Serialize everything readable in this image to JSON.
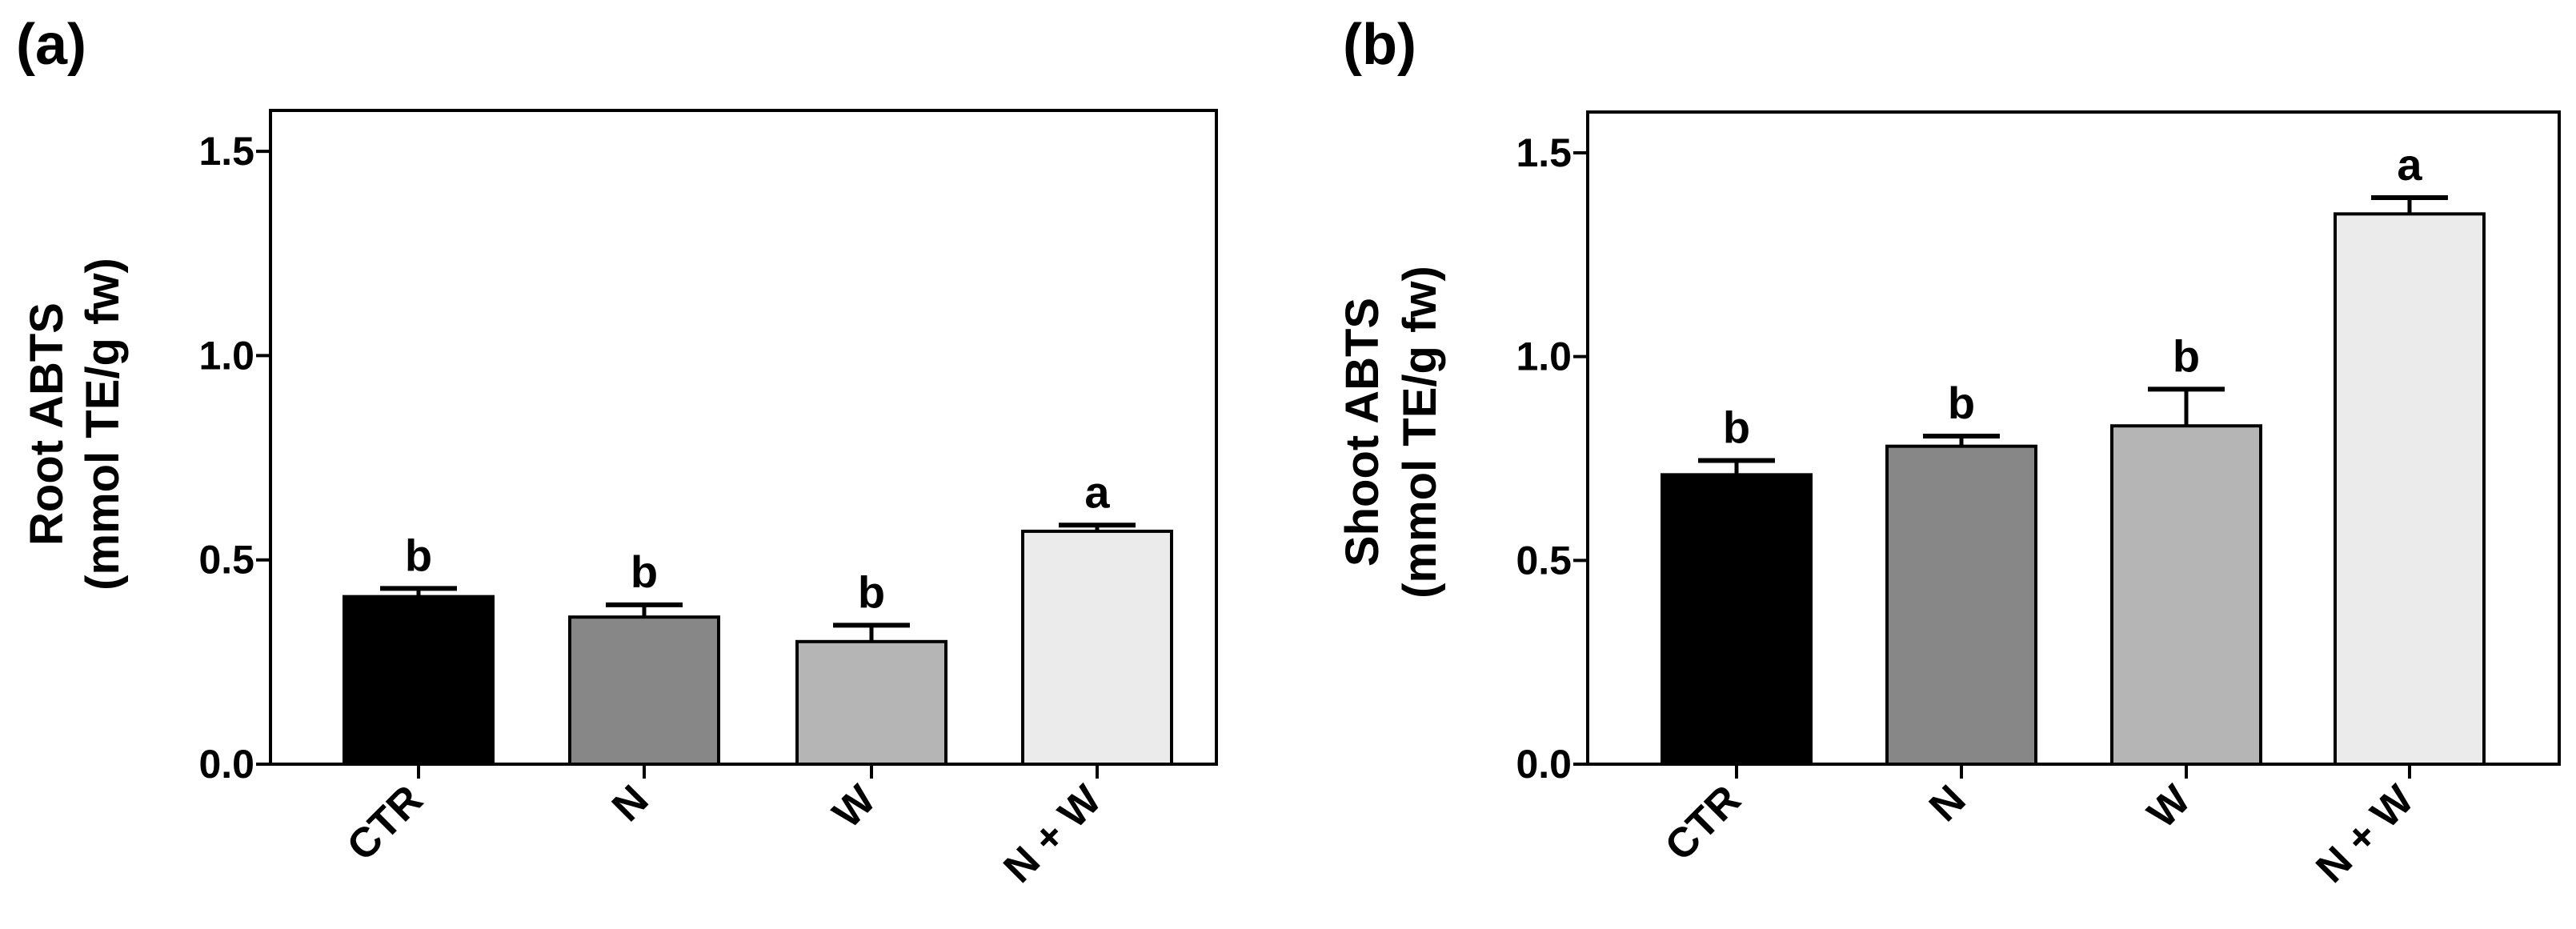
{
  "chart_data": [
    {
      "type": "bar",
      "panel_label": "(a)",
      "ylabel_line1": "Root ABTS",
      "ylabel_line2": "(mmol TE/g fw)",
      "ylim": [
        0,
        1.6
      ],
      "yticks": [
        "0.0",
        "0.5",
        "1.0",
        "1.5"
      ],
      "ytick_values": [
        0,
        0.5,
        1.0,
        1.5
      ],
      "categories": [
        "CTR",
        "N",
        "W",
        "N + W"
      ],
      "values": [
        0.41,
        0.36,
        0.3,
        0.57
      ],
      "errors": [
        0.02,
        0.03,
        0.04,
        0.015
      ],
      "significance": [
        "b",
        "b",
        "b",
        "a"
      ],
      "colors": [
        "#000000",
        "#878787",
        "#b5b5b5",
        "#ebebeb"
      ]
    },
    {
      "type": "bar",
      "panel_label": "(b)",
      "ylabel_line1": "Shoot ABTS",
      "ylabel_line2": "(mmol TE/g fw)",
      "ylim": [
        0,
        1.6
      ],
      "yticks": [
        "0.0",
        "0.5",
        "1.0",
        "1.5"
      ],
      "ytick_values": [
        0,
        0.5,
        1.0,
        1.5
      ],
      "categories": [
        "CTR",
        "N",
        "W",
        "N + W"
      ],
      "values": [
        0.71,
        0.78,
        0.83,
        1.35
      ],
      "errors": [
        0.035,
        0.025,
        0.09,
        0.04
      ],
      "significance": [
        "b",
        "b",
        "b",
        "a"
      ],
      "colors": [
        "#000000",
        "#878787",
        "#b5b5b5",
        "#ebebeb"
      ]
    }
  ]
}
